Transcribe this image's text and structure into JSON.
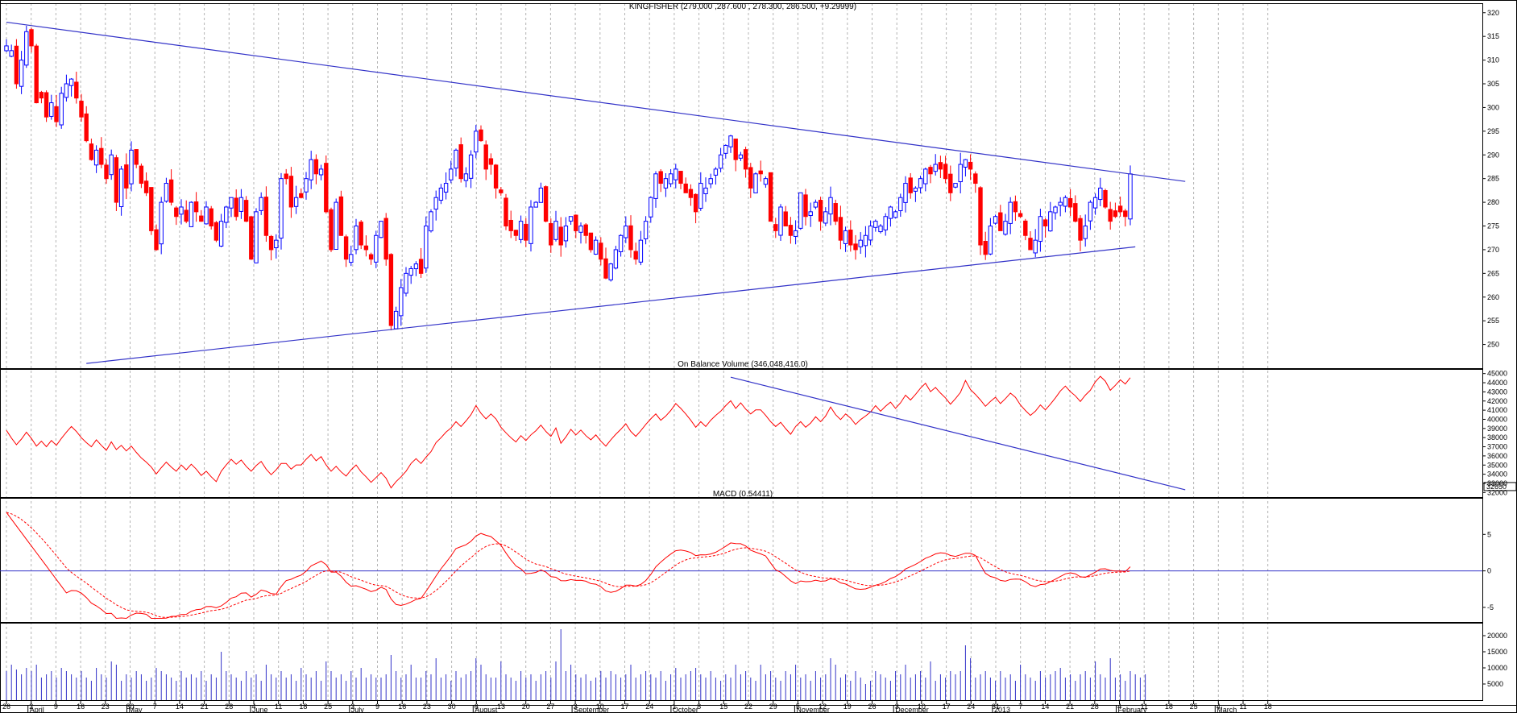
{
  "colors": {
    "up": "#0000ff",
    "down": "#ff0000",
    "hollow_fill": "#ffffff",
    "trendline": "#3232c8",
    "indicator": "#ff0000",
    "grid": "#b4b4b4",
    "frame": "#000000"
  },
  "chart_data": [
    {
      "type": "candlestick",
      "title": "KINGFISHER (279.000 ,287.600 , 278.300, 286.500, +9.29999)",
      "y_ticks": [
        250,
        255,
        260,
        265,
        270,
        275,
        280,
        285,
        290,
        295,
        300,
        305,
        310,
        315,
        320
      ],
      "ylim": [
        245,
        322
      ],
      "x_tick_labels": [
        "26",
        "2",
        "9",
        "16",
        "23",
        "30",
        "7",
        "14",
        "21",
        "28",
        "4",
        "11",
        "18",
        "25",
        "2",
        "9",
        "16",
        "23",
        "30",
        "6",
        "13",
        "20",
        "27",
        "3",
        "10",
        "17",
        "24",
        "1",
        "8",
        "15",
        "22",
        "29",
        "5",
        "12",
        "19",
        "26",
        "3",
        "10",
        "17",
        "24",
        "31",
        "7",
        "14",
        "21",
        "28",
        "4",
        "11",
        "18",
        "25",
        "4",
        "11",
        "18"
      ],
      "month_labels": [
        {
          "label": "April",
          "tick": 1
        },
        {
          "label": "May",
          "tick": 5
        },
        {
          "label": "June",
          "tick": 10
        },
        {
          "label": "July",
          "tick": 14
        },
        {
          "label": "August",
          "tick": 19
        },
        {
          "label": "September",
          "tick": 23
        },
        {
          "label": "October",
          "tick": 27
        },
        {
          "label": "November",
          "tick": 32
        },
        {
          "label": "December",
          "tick": 36
        },
        {
          "label": "2013",
          "tick": 40
        },
        {
          "label": "February",
          "tick": 45
        },
        {
          "label": "March",
          "tick": 49
        }
      ],
      "close": [
        313,
        312,
        305,
        310,
        316,
        313,
        301,
        302,
        298,
        301,
        297,
        303,
        305,
        306,
        302,
        298,
        293,
        289,
        291,
        288,
        285,
        290,
        280,
        287,
        283,
        291,
        288,
        284,
        282,
        274,
        270,
        280,
        284,
        280,
        277,
        279,
        276,
        280,
        278,
        276,
        279,
        275,
        272,
        276,
        279,
        281,
        277,
        281,
        276,
        268,
        278,
        281,
        273,
        270,
        272,
        285,
        285,
        279,
        281,
        281,
        285,
        289,
        286,
        287,
        278,
        270,
        280,
        273,
        268,
        269,
        275,
        271,
        270,
        268,
        273,
        276,
        268,
        254,
        257,
        262,
        265,
        266,
        267,
        265,
        275,
        278,
        281,
        283,
        284,
        287,
        291,
        285,
        286,
        290,
        295,
        293,
        287,
        288,
        283,
        282,
        275,
        274,
        273,
        276,
        272,
        279,
        280,
        283,
        276,
        271,
        276,
        271,
        275,
        277,
        274,
        275,
        273,
        270,
        272,
        268,
        264,
        267,
        270,
        273,
        275,
        270,
        268,
        272,
        276,
        281,
        286,
        284,
        285,
        286,
        287,
        284,
        282,
        281,
        278,
        284,
        283,
        285,
        287,
        290,
        292,
        294,
        289,
        290,
        287,
        283,
        286,
        286,
        285,
        276,
        274,
        279,
        275,
        273,
        274,
        282,
        277,
        278,
        280,
        276,
        278,
        281,
        276,
        272,
        274,
        271,
        270,
        272,
        273,
        275,
        276,
        275,
        277,
        279,
        278,
        281,
        284,
        282,
        283,
        285,
        287,
        286,
        288,
        287,
        285,
        282,
        284,
        288,
        289,
        287,
        284,
        271,
        269,
        275,
        277,
        274,
        276,
        280,
        278,
        277,
        273,
        270,
        272,
        277,
        275,
        278,
        279,
        280,
        281,
        279,
        276,
        272,
        275,
        280,
        281,
        283,
        279,
        276,
        277,
        278,
        277,
        286
      ],
      "overlays": {
        "upper_trendline": [
          {
            "bar": 0,
            "price": 318
          },
          {
            "bar": 236,
            "price": 284.4
          }
        ],
        "lower_trendline": [
          {
            "bar": 16,
            "price": 246
          },
          {
            "bar": 226,
            "price": 270.6
          }
        ]
      }
    },
    {
      "type": "line",
      "title": "On Balance Volume (346,048,416.0)",
      "y_ticks": [
        32000,
        33000,
        34000,
        35000,
        36000,
        37000,
        38000,
        39000,
        40000,
        41000,
        42000,
        43000,
        44000,
        45000
      ],
      "ylim": [
        31500,
        45500
      ],
      "current_value_label": "32650",
      "overlays": {
        "trendline": [
          {
            "bar": 145,
            "value": 44600
          },
          {
            "bar": 236,
            "value": 32300
          }
        ]
      }
    },
    {
      "type": "line",
      "title": "MACD (0.54411)",
      "y_ticks": [
        -5,
        0,
        5
      ],
      "ylim": [
        -7,
        10
      ],
      "series": [
        {
          "name": "",
          "style": "solid"
        },
        {
          "name": "",
          "style": "dashed"
        }
      ],
      "zero_line": 0
    },
    {
      "type": "bar",
      "y_ticks": [
        5000,
        10000,
        15000,
        20000
      ],
      "ylim": [
        0,
        24000
      ],
      "volume": [
        9000,
        11000,
        9500,
        8000,
        10000,
        9000,
        11000,
        7000,
        8000,
        9000,
        7000,
        10000,
        9000,
        8000,
        7000,
        9000,
        7000,
        6000,
        10000,
        8000,
        7000,
        12000,
        11000,
        6000,
        8000,
        7000,
        9000,
        8000,
        6000,
        7000,
        10000,
        9000,
        8000,
        7000,
        6000,
        9000,
        7000,
        8000,
        7000,
        9000,
        6000,
        8000,
        7000,
        15000,
        9000,
        8000,
        7000,
        6000,
        9000,
        7000,
        8000,
        6000,
        11000,
        8000,
        7000,
        9000,
        7000,
        8000,
        6000,
        10000,
        8000,
        7000,
        9000,
        6000,
        12000,
        9000,
        7000,
        8000,
        6000,
        9000,
        7000,
        10000,
        7000,
        8000,
        7000,
        7000,
        8000,
        14000,
        9000,
        7000,
        8000,
        11000,
        7000,
        7000,
        9000,
        8000,
        13000,
        7000,
        8000,
        6000,
        9000,
        7000,
        8000,
        9000,
        13000,
        11000,
        8000,
        7000,
        7000,
        12000,
        8000,
        7000,
        6000,
        9000,
        7000,
        8000,
        6000,
        8000,
        9000,
        7000,
        12000,
        22000,
        9000,
        11000,
        8000,
        7000,
        8000,
        6000,
        7000,
        9000,
        7000,
        9000,
        8000,
        7000,
        8000,
        11000,
        7000,
        8000,
        9000,
        8000,
        7000,
        9000,
        6000,
        8000,
        10000,
        7000,
        8000,
        9000,
        10000,
        8000,
        7000,
        9000,
        7000,
        6000,
        8000,
        7000,
        11000,
        8000,
        9000,
        7000,
        6000,
        11000,
        8000,
        9000,
        7000,
        6000,
        9000,
        8000,
        11000,
        7000,
        8000,
        6000,
        9000,
        7000,
        8000,
        13000,
        11000,
        7000,
        8000,
        6000,
        9000,
        7000,
        5000,
        6000,
        9000,
        8000,
        7000,
        6000,
        9000,
        8000,
        11000,
        7000,
        8000,
        9000,
        7000,
        12000,
        6000,
        8000,
        7000,
        9000,
        8000,
        9000,
        17000,
        13000,
        7000,
        8000,
        9000,
        7000,
        6000,
        9000,
        7000,
        8000,
        6000,
        11000,
        8000,
        7000,
        6000,
        9000,
        7000,
        8000,
        9000,
        10000,
        7000,
        8000,
        6000,
        8000,
        9000,
        7000,
        12000,
        8000,
        7000,
        13000,
        7000,
        8000,
        6000,
        9000,
        8000,
        7000,
        8000
      ]
    }
  ]
}
